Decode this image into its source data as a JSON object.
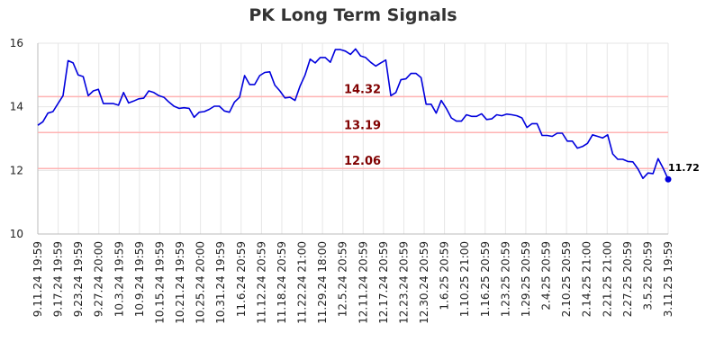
{
  "chart_data": {
    "type": "line",
    "title": "PK Long Term Signals",
    "xlabel": "",
    "ylabel": "",
    "ylim": [
      10,
      16
    ],
    "yticks": [
      10,
      12,
      14,
      16
    ],
    "grid": true,
    "x_tick_labels": [
      "9.11.24 19:59",
      "9.17.24 19:59",
      "9.23.24 19:59",
      "9.27.24 20:00",
      "10.3.24 19:59",
      "10.9.24 19:59",
      "10.15.24 19:59",
      "10.21.24 19:59",
      "10.25.24 20:00",
      "10.31.24 19:59",
      "11.6.24 20:59",
      "11.12.24 20:59",
      "11.18.24 20:59",
      "11.22.24 21:00",
      "11.29.24 18:00",
      "12.5.24 20:59",
      "12.11.24 20:59",
      "12.17.24 20:59",
      "12.23.24 20:59",
      "12.30.24 20:59",
      "1.6.25 20:59",
      "1.10.25 21:00",
      "1.16.25 20:59",
      "1.23.25 20:59",
      "1.29.25 20:59",
      "2.4.25 20:59",
      "2.10.25 20:59",
      "2.14.25 21:00",
      "2.21.25 21:00",
      "2.27.25 20:59",
      "3.5.25 20:59",
      "3.11.25 19:59"
    ],
    "reference_lines": [
      {
        "value": 14.32,
        "label": "14.32"
      },
      {
        "value": 13.19,
        "label": "13.19"
      },
      {
        "value": 12.06,
        "label": "12.06"
      }
    ],
    "series": [
      {
        "color": "#0000dd",
        "values": [
          13.42,
          13.53,
          13.8,
          13.85,
          14.1,
          14.35,
          15.45,
          15.38,
          15.0,
          14.95,
          14.35,
          14.5,
          14.55,
          14.1,
          14.1,
          14.1,
          14.05,
          14.45,
          14.12,
          14.18,
          14.25,
          14.27,
          14.5,
          14.45,
          14.35,
          14.3,
          14.15,
          14.02,
          13.95,
          13.97,
          13.95,
          13.67,
          13.83,
          13.85,
          13.92,
          14.02,
          14.02,
          13.87,
          13.83,
          14.15,
          14.3,
          14.98,
          14.7,
          14.7,
          14.98,
          15.08,
          15.1,
          14.68,
          14.5,
          14.28,
          14.3,
          14.2,
          14.65,
          15.0,
          15.5,
          15.38,
          15.55,
          15.55,
          15.4,
          15.8,
          15.8,
          15.75,
          15.65,
          15.82,
          15.6,
          15.55,
          15.4,
          15.28,
          15.38,
          15.47,
          14.35,
          14.45,
          14.85,
          14.88,
          15.05,
          15.05,
          14.92,
          14.08,
          14.08,
          13.8,
          14.2,
          13.95,
          13.65,
          13.55,
          13.55,
          13.75,
          13.7,
          13.7,
          13.78,
          13.6,
          13.62,
          13.75,
          13.72,
          13.77,
          13.75,
          13.72,
          13.65,
          13.35,
          13.47,
          13.47,
          13.1,
          13.1,
          13.07,
          13.17,
          13.17,
          12.92,
          12.92,
          12.7,
          12.75,
          12.85,
          13.12,
          13.07,
          13.02,
          13.12,
          12.52,
          12.35,
          12.35,
          12.28,
          12.27,
          12.05,
          11.75,
          11.92,
          11.9,
          12.37,
          12.07,
          11.72
        ]
      }
    ],
    "last_point": {
      "value": 11.72,
      "label": "11.72"
    }
  }
}
